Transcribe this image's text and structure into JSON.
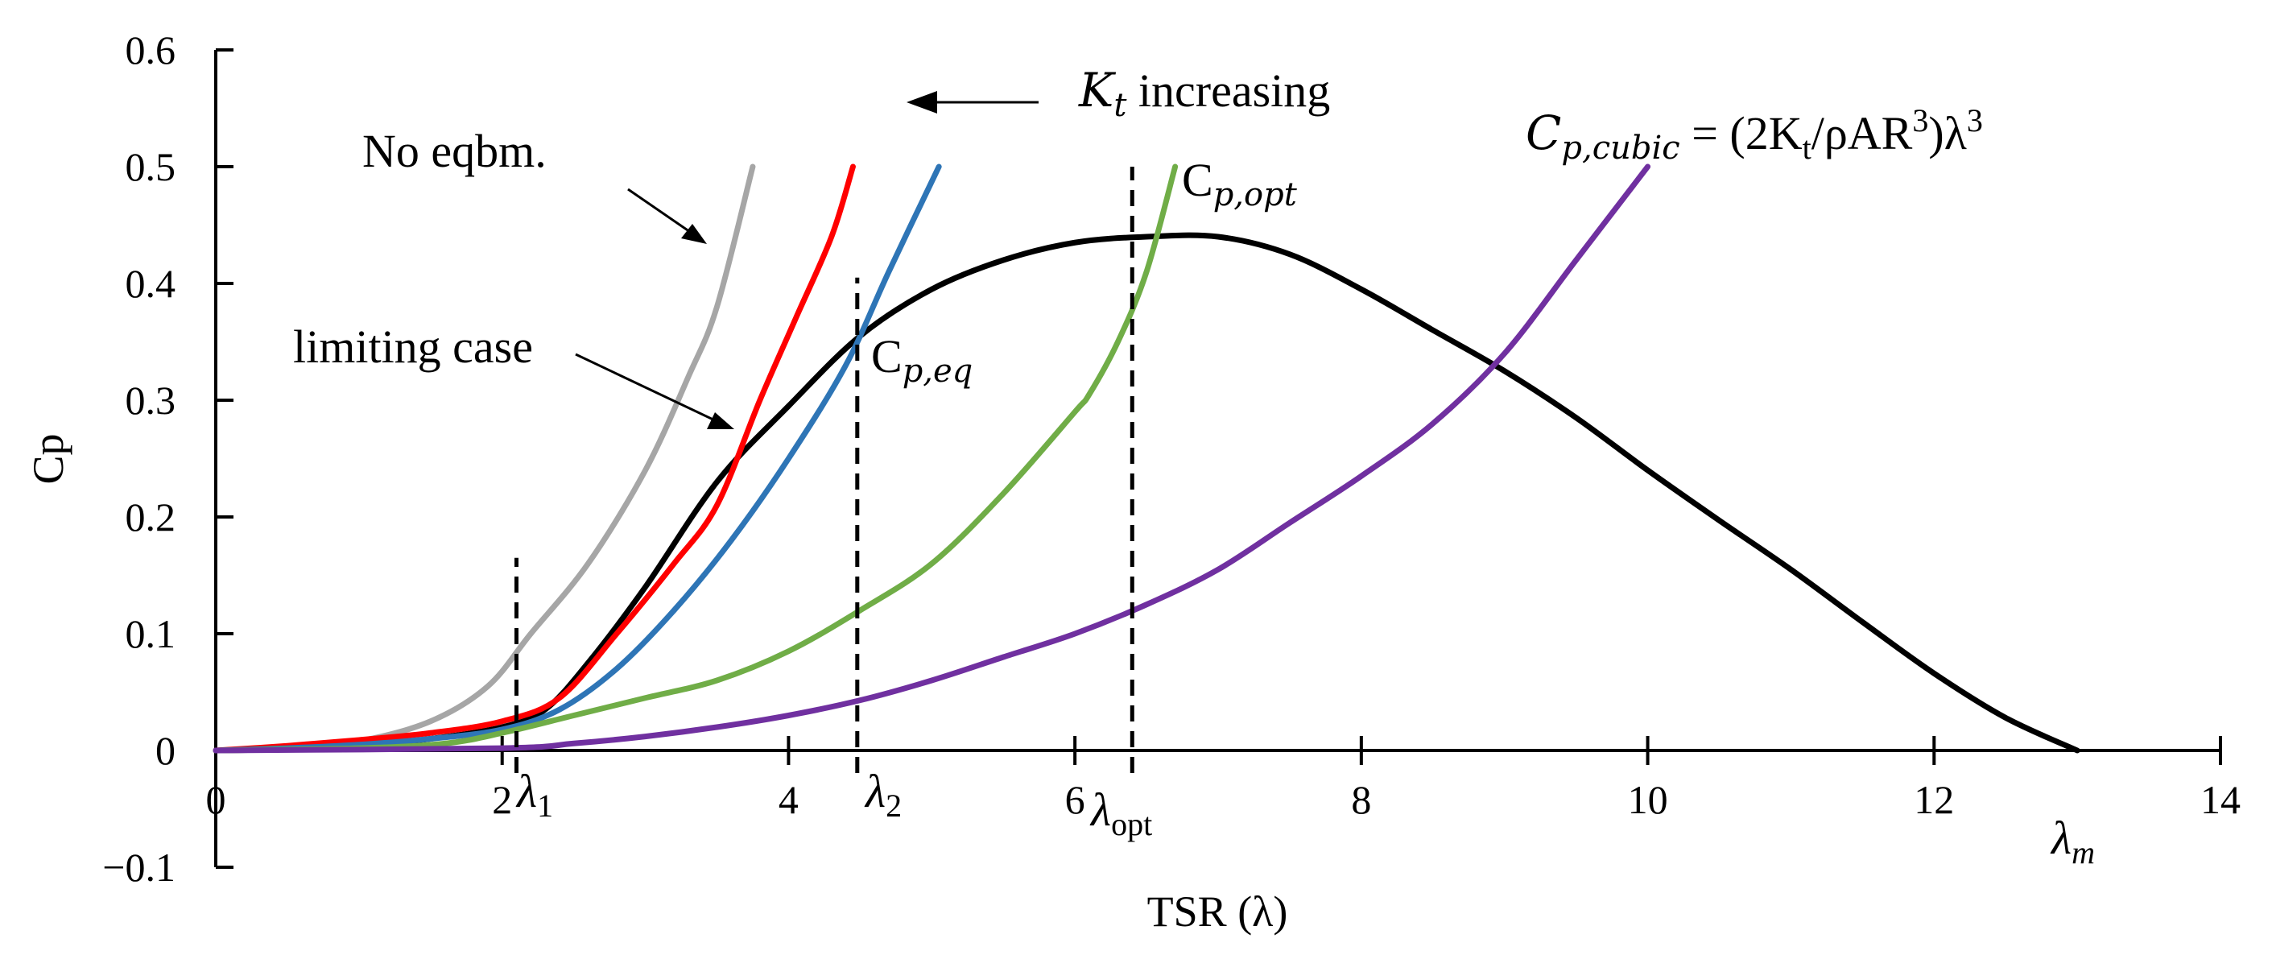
{
  "chart_data": {
    "type": "line",
    "xlabel": "TSR (λ)",
    "ylabel": "Cp",
    "xlim": [
      0,
      14
    ],
    "ylim": [
      -0.1,
      0.6
    ],
    "xticks": [
      "0",
      "2",
      "4",
      "6",
      "8",
      "10",
      "12",
      "14"
    ],
    "yticks": [
      "−0.1",
      "0",
      "0.1",
      "0.2",
      "0.3",
      "0.4",
      "0.5",
      "0.6"
    ],
    "grid": false,
    "series": [
      {
        "color": "#000000",
        "points": [
          [
            0,
            0
          ],
          [
            0.5,
            0.001
          ],
          [
            1.0,
            0.004
          ],
          [
            1.5,
            0.01
          ],
          [
            2.0,
            0.02
          ],
          [
            2.3,
            0.035
          ],
          [
            2.6,
            0.075
          ],
          [
            3.0,
            0.14
          ],
          [
            3.5,
            0.23
          ],
          [
            4.0,
            0.295
          ],
          [
            4.5,
            0.355
          ],
          [
            5.0,
            0.395
          ],
          [
            5.5,
            0.42
          ],
          [
            6.0,
            0.435
          ],
          [
            6.5,
            0.44
          ],
          [
            7.0,
            0.44
          ],
          [
            7.5,
            0.425
          ],
          [
            8.0,
            0.395
          ],
          [
            8.5,
            0.36
          ],
          [
            9.0,
            0.325
          ],
          [
            9.5,
            0.285
          ],
          [
            10.0,
            0.24
          ],
          [
            10.5,
            0.197
          ],
          [
            11.0,
            0.155
          ],
          [
            11.5,
            0.11
          ],
          [
            12.0,
            0.066
          ],
          [
            12.5,
            0.028
          ],
          [
            13.0,
            0.0
          ]
        ]
      },
      {
        "color": "#a6a6a6",
        "points": [
          [
            0,
            0
          ],
          [
            0.5,
            0.002
          ],
          [
            1.0,
            0.008
          ],
          [
            1.5,
            0.025
          ],
          [
            1.9,
            0.055
          ],
          [
            2.2,
            0.1
          ],
          [
            2.6,
            0.16
          ],
          [
            3.0,
            0.24
          ],
          [
            3.3,
            0.32
          ],
          [
            3.5,
            0.38
          ],
          [
            3.75,
            0.5
          ]
        ]
      },
      {
        "color": "#ff0000",
        "points": [
          [
            0,
            0
          ],
          [
            0.5,
            0.004
          ],
          [
            1.0,
            0.009
          ],
          [
            1.5,
            0.015
          ],
          [
            2.0,
            0.025
          ],
          [
            2.4,
            0.045
          ],
          [
            2.8,
            0.1
          ],
          [
            3.2,
            0.16
          ],
          [
            3.5,
            0.21
          ],
          [
            3.8,
            0.3
          ],
          [
            4.05,
            0.37
          ],
          [
            4.3,
            0.44
          ],
          [
            4.45,
            0.5
          ]
        ]
      },
      {
        "color": "#2e75b6",
        "points": [
          [
            0,
            0
          ],
          [
            0.5,
            0.002
          ],
          [
            1.0,
            0.005
          ],
          [
            1.5,
            0.01
          ],
          [
            2.0,
            0.018
          ],
          [
            2.4,
            0.035
          ],
          [
            2.8,
            0.07
          ],
          [
            3.2,
            0.12
          ],
          [
            3.6,
            0.18
          ],
          [
            4.0,
            0.25
          ],
          [
            4.4,
            0.33
          ],
          [
            4.7,
            0.41
          ],
          [
            5.05,
            0.5
          ]
        ]
      },
      {
        "color": "#70ad47",
        "points": [
          [
            0,
            0
          ],
          [
            1.0,
            0.002
          ],
          [
            1.6,
            0.006
          ],
          [
            2.0,
            0.015
          ],
          [
            2.5,
            0.03
          ],
          [
            3.0,
            0.045
          ],
          [
            3.5,
            0.06
          ],
          [
            4.0,
            0.085
          ],
          [
            4.5,
            0.12
          ],
          [
            5.0,
            0.16
          ],
          [
            5.5,
            0.22
          ],
          [
            6.0,
            0.29
          ],
          [
            6.1,
            0.305
          ],
          [
            6.3,
            0.35
          ],
          [
            6.5,
            0.41
          ],
          [
            6.7,
            0.5
          ]
        ]
      },
      {
        "color": "#7030a0",
        "points": [
          [
            0,
            0
          ],
          [
            2.0,
            0.002
          ],
          [
            2.5,
            0.006
          ],
          [
            3.0,
            0.012
          ],
          [
            3.5,
            0.02
          ],
          [
            4.0,
            0.03
          ],
          [
            4.5,
            0.043
          ],
          [
            5.0,
            0.06
          ],
          [
            5.5,
            0.08
          ],
          [
            6.0,
            0.1
          ],
          [
            6.5,
            0.125
          ],
          [
            7.0,
            0.155
          ],
          [
            7.5,
            0.195
          ],
          [
            8.0,
            0.235
          ],
          [
            8.5,
            0.28
          ],
          [
            9.0,
            0.34
          ],
          [
            9.5,
            0.42
          ],
          [
            10.0,
            0.5
          ]
        ]
      }
    ],
    "vlines": [
      {
        "x": 2.1,
        "y0": 0.0,
        "y1": 0.165
      },
      {
        "x": 4.48,
        "y0": 0.0,
        "y1": 0.405
      },
      {
        "x": 6.4,
        "y0": 0.0,
        "y1": 0.5
      }
    ]
  },
  "annotations": {
    "no_eqbm": "No eqbm.",
    "limiting_case": "limiting case",
    "kt_symbol": "K",
    "kt_sub": "t",
    "kt_increasing": " increasing",
    "cp_eq_main": "C",
    "cp_eq_sub": "p,eq",
    "cp_opt_main": "C",
    "cp_opt_sub": "p,opt",
    "cp_cubic_lhs": "C",
    "cp_cubic_sub": "p,cubic",
    "cp_cubic_rhs": " = (2K",
    "cp_cubic_rhs_sub": "t",
    "cp_cubic_rhs2": "/ρAR",
    "cp_cubic_sup1": "3",
    "cp_cubic_rhs3": ")λ",
    "cp_cubic_sup2": "3",
    "lambda": "λ",
    "lambda1_sub": "1",
    "lambda2_sub": "2",
    "lambda_opt_sub": "opt",
    "lambda_m_sub": "m"
  }
}
